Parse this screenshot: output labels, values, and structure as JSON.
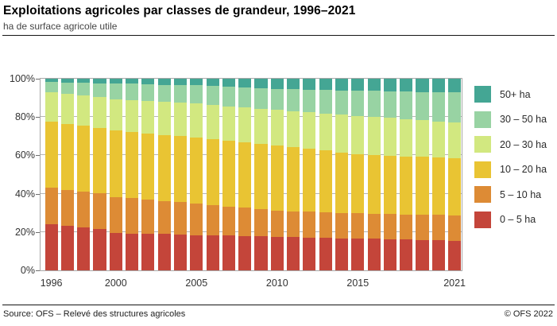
{
  "header": {
    "title": "Exploitations agricoles par classes de grandeur, 1996–2021",
    "subtitle": "ha de surface agricole utile"
  },
  "footer": {
    "source": "Source: OFS – Relevé des structures agricoles",
    "copyright": "© OFS 2022"
  },
  "colors": {
    "size_0_5": "#c4453a",
    "size_5_10": "#dd8b35",
    "size_10_20": "#e9c433",
    "size_20_30": "#d2e880",
    "size_30_50": "#98d3a3",
    "size_50_plus": "#44a694"
  },
  "legend": {
    "items": [
      {
        "label": "50+ ha",
        "color": "#44a694"
      },
      {
        "label": "30 – 50 ha",
        "color": "#98d3a3"
      },
      {
        "label": "20 – 30 ha",
        "color": "#d2e880"
      },
      {
        "label": "10 – 20 ha",
        "color": "#e9c433"
      },
      {
        "label": "5 – 10 ha",
        "color": "#dd8b35"
      },
      {
        "label": "0 – 5 ha",
        "color": "#c4453a"
      }
    ]
  },
  "chart_data": {
    "type": "bar",
    "stacked": true,
    "percent": true,
    "title": "Exploitations agricoles par classes de grandeur, 1996–2021",
    "xlabel": "",
    "ylabel": "ha de surface agricole utile",
    "ylim": [
      0,
      100
    ],
    "grid": "horizontal-under-bars",
    "legend_position": "right",
    "x": [
      1996,
      1997,
      1998,
      1999,
      2000,
      2001,
      2002,
      2003,
      2004,
      2005,
      2006,
      2007,
      2008,
      2009,
      2010,
      2011,
      2012,
      2013,
      2014,
      2015,
      2016,
      2017,
      2018,
      2019,
      2020,
      2021
    ],
    "x_axis_labels": [
      "1996",
      "2000",
      "2005",
      "2010",
      "2015",
      "2021"
    ],
    "y_ticks_percent": [
      0,
      20,
      40,
      60,
      80,
      100
    ],
    "y_tick_labels": [
      "0%",
      "20%",
      "40%",
      "60%",
      "80%",
      "100%"
    ],
    "series": [
      {
        "name": "0 – 5 ha",
        "color": "#c4453a",
        "values": [
          24.0,
          23.2,
          22.4,
          21.4,
          19.6,
          19.3,
          19.1,
          18.9,
          18.6,
          18.4,
          18.2,
          18.1,
          17.9,
          17.8,
          17.6,
          17.4,
          17.2,
          17.0,
          16.8,
          16.6,
          16.4,
          16.2,
          16.0,
          15.8,
          15.6,
          15.4
        ]
      },
      {
        "name": "5 – 10 ha",
        "color": "#dd8b35",
        "values": [
          19.0,
          18.8,
          18.7,
          18.8,
          18.7,
          18.3,
          17.8,
          17.3,
          17.0,
          16.6,
          16.0,
          15.3,
          14.8,
          14.2,
          13.7,
          13.5,
          13.4,
          13.3,
          13.2,
          13.1,
          13.1,
          13.2,
          13.2,
          13.3,
          13.3,
          13.4
        ]
      },
      {
        "name": "10 – 20 ha",
        "color": "#e9c433",
        "values": [
          34.6,
          34.5,
          34.4,
          34.2,
          34.9,
          34.7,
          34.5,
          34.5,
          34.4,
          34.4,
          34.4,
          34.3,
          34.2,
          34.1,
          34.0,
          33.5,
          32.9,
          32.2,
          31.6,
          31.0,
          30.8,
          30.5,
          30.3,
          30.1,
          29.9,
          29.7
        ]
      },
      {
        "name": "20 – 30 ha",
        "color": "#d2e880",
        "values": [
          15.3,
          15.6,
          15.7,
          15.9,
          16.1,
          16.5,
          17.0,
          17.2,
          17.5,
          17.6,
          17.8,
          18.0,
          18.2,
          18.3,
          18.5,
          18.8,
          19.0,
          19.4,
          19.7,
          20.0,
          19.8,
          19.6,
          19.5,
          19.2,
          19.0,
          18.8
        ]
      },
      {
        "name": "30 – 50 ha",
        "color": "#98d3a3",
        "values": [
          5.4,
          6.0,
          6.7,
          7.4,
          8.3,
          8.6,
          8.8,
          9.0,
          9.2,
          9.6,
          9.8,
          10.2,
          10.4,
          10.8,
          11.0,
          11.4,
          11.9,
          12.2,
          12.6,
          13.0,
          13.5,
          13.9,
          14.3,
          14.7,
          15.2,
          15.5
        ]
      },
      {
        "name": "50+ ha",
        "color": "#44a694",
        "values": [
          1.7,
          1.9,
          2.1,
          2.3,
          2.4,
          2.6,
          2.8,
          3.1,
          3.3,
          3.4,
          3.8,
          4.1,
          4.5,
          4.8,
          5.2,
          5.4,
          5.6,
          5.9,
          6.1,
          6.3,
          6.4,
          6.6,
          6.7,
          6.9,
          7.0,
          7.2
        ]
      }
    ]
  }
}
